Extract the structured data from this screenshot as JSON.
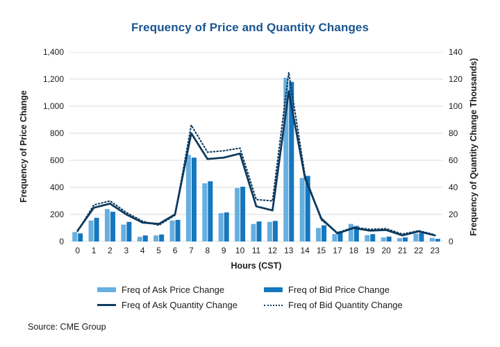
{
  "title": "Frequency of Price and Quantity Changes",
  "source": "Source: CME Group",
  "colors": {
    "title": "#1A5591",
    "ask_price_bar": "#66AFE0",
    "bid_price_bar": "#1577BE",
    "quantity_line": "#0D3A5E",
    "gridline": "#D8D8D8",
    "baseline": "#BFBFBF",
    "text": "#1A1A1A"
  },
  "chart_data": {
    "type": "bar",
    "subtype": "grouped bars with two overlay lines on secondary axis",
    "title": "Frequency of Price and Quantity Changes",
    "xlabel": "Hours (CST)",
    "ylabel_left": "Frequency of Price Change",
    "ylabel_right": "Frequency of Quantity Change Thousands)",
    "categories": [
      "0",
      "1",
      "2",
      "3",
      "4",
      "5",
      "6",
      "7",
      "8",
      "9",
      "10",
      "11",
      "12",
      "13",
      "14",
      "15",
      "17",
      "18",
      "19",
      "20",
      "21",
      "22",
      "23"
    ],
    "ylim_left": [
      0,
      1400
    ],
    "ylim_right": [
      0,
      140
    ],
    "yticks_left": [
      "1,400",
      "1,200",
      "1,000",
      "800",
      "600",
      "400",
      "200",
      "0"
    ],
    "yticks_right": [
      "140",
      "120",
      "100",
      "80",
      "60",
      "40",
      "20",
      "0"
    ],
    "grid": true,
    "legend_position": "bottom",
    "series": [
      {
        "name": "Freq of Ask Price Change",
        "kind": "bar",
        "axis": "left",
        "color": "#66AFE0",
        "values": [
          70,
          155,
          240,
          125,
          35,
          45,
          155,
          640,
          430,
          210,
          395,
          130,
          145,
          1210,
          470,
          100,
          55,
          130,
          47,
          30,
          25,
          58,
          27
        ]
      },
      {
        "name": "Freq of Bid Price Change",
        "kind": "bar",
        "axis": "left",
        "color": "#1577BE",
        "values": [
          60,
          175,
          220,
          145,
          45,
          52,
          160,
          620,
          445,
          215,
          405,
          148,
          152,
          1180,
          485,
          120,
          75,
          115,
          55,
          36,
          30,
          63,
          20
        ]
      },
      {
        "name": "Freq of Ask Quantity Change",
        "kind": "line",
        "style": "solid",
        "axis": "right",
        "color": "#0D3A5E",
        "values": [
          8,
          25,
          28,
          20,
          14,
          13,
          20,
          80,
          61,
          62,
          65,
          26,
          23,
          111,
          47,
          17,
          6,
          10,
          8,
          8.5,
          4.5,
          7.5,
          4.5
        ]
      },
      {
        "name": "Freq of Bid Quantity Change",
        "kind": "line",
        "style": "dotted",
        "axis": "right",
        "color": "#0D3A5E",
        "values": [
          7.5,
          27,
          30,
          21.5,
          15,
          12,
          19.5,
          86,
          66,
          67,
          69,
          31,
          30,
          125,
          49,
          16,
          6.5,
          10.5,
          9,
          9.5,
          5.5,
          8,
          5
        ]
      }
    ]
  }
}
